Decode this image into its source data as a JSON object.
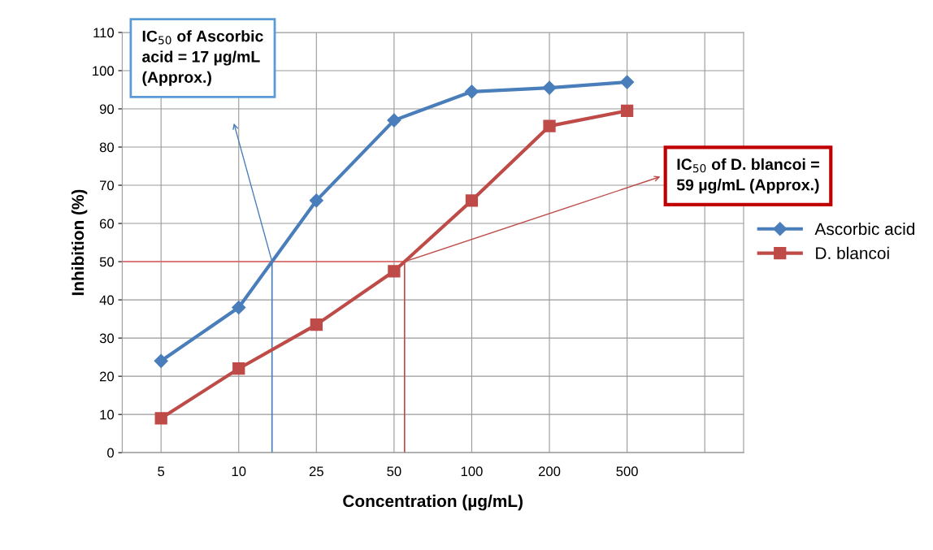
{
  "chart_data": {
    "type": "line",
    "xlabel": "Concentration (µg/mL)",
    "ylabel": "Inhibition (%)",
    "categories": [
      "5",
      "10",
      "25",
      "50",
      "100",
      "200",
      "500",
      null
    ],
    "series": [
      {
        "name": "Ascorbic acid",
        "color": "#4a7ebb",
        "marker": "diamond",
        "values": [
          24,
          38,
          66,
          87,
          94.5,
          95.5,
          97,
          null
        ]
      },
      {
        "name": "D. blancoi",
        "color": "#be4b48",
        "marker": "square",
        "values": [
          9,
          22,
          33.5,
          47.5,
          66,
          85.5,
          89.5,
          null
        ]
      }
    ],
    "ylim": [
      0,
      110
    ],
    "yticks": [
      0,
      10,
      20,
      30,
      40,
      50,
      60,
      70,
      80,
      90,
      100,
      110
    ],
    "grid": true,
    "legend": "right",
    "ref_lines": [
      {
        "axis": "y",
        "value": 50,
        "color": "#e06060"
      }
    ],
    "annotations": [
      "IC$_{50}$ of Ascorbic\nacid = 17 µg/mL\n(Approx.)",
      "IC$_{50}$ of D. blancoi =\n59 µg/mL (Approx.)"
    ]
  }
}
